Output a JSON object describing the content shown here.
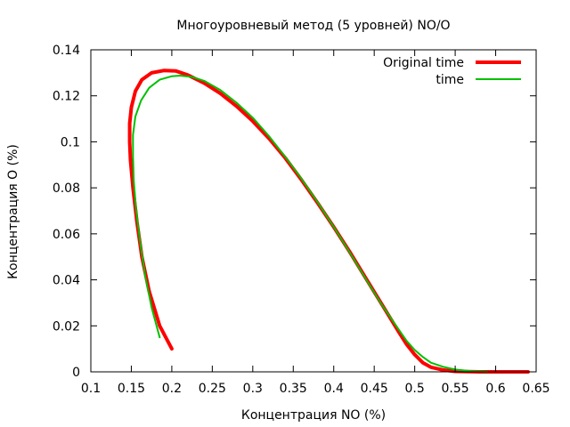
{
  "chart_data": {
    "type": "line",
    "title": "Многоуровневый метод (5 уровней) NO/O",
    "xlabel": "Концентрация NO (%)",
    "ylabel": "Концентрация O (%)",
    "xlim": [
      0.1,
      0.65
    ],
    "ylim": [
      0,
      0.14
    ],
    "x_ticks": [
      {
        "value": 0.1,
        "label": "0.1"
      },
      {
        "value": 0.15,
        "label": "0.15"
      },
      {
        "value": 0.2,
        "label": "0.2"
      },
      {
        "value": 0.25,
        "label": "0.25"
      },
      {
        "value": 0.3,
        "label": "0.3"
      },
      {
        "value": 0.35,
        "label": "0.35"
      },
      {
        "value": 0.4,
        "label": "0.4"
      },
      {
        "value": 0.45,
        "label": "0.45"
      },
      {
        "value": 0.5,
        "label": "0.5"
      },
      {
        "value": 0.55,
        "label": "0.55"
      },
      {
        "value": 0.6,
        "label": "0.6"
      },
      {
        "value": 0.65,
        "label": "0.65"
      }
    ],
    "y_ticks": [
      {
        "value": 0,
        "label": "0"
      },
      {
        "value": 0.02,
        "label": "0.02"
      },
      {
        "value": 0.04,
        "label": "0.04"
      },
      {
        "value": 0.06,
        "label": "0.06"
      },
      {
        "value": 0.08,
        "label": "0.08"
      },
      {
        "value": 0.1,
        "label": "0.1"
      },
      {
        "value": 0.12,
        "label": "0.12"
      },
      {
        "value": 0.14,
        "label": "0.14"
      }
    ],
    "grid": false,
    "legend_position": "top-right",
    "series": [
      {
        "name": "Original time",
        "color": "#ff0000",
        "line_weight": "thick",
        "x": [
          0.2,
          0.185,
          0.172,
          0.163,
          0.157,
          0.152,
          0.149,
          0.148,
          0.148,
          0.15,
          0.155,
          0.163,
          0.175,
          0.19,
          0.205,
          0.22,
          0.24,
          0.26,
          0.28,
          0.3,
          0.32,
          0.34,
          0.36,
          0.38,
          0.4,
          0.42,
          0.44,
          0.46,
          0.48,
          0.49,
          0.5,
          0.51,
          0.52,
          0.535,
          0.55,
          0.58,
          0.6,
          0.64
        ],
        "y": [
          0.01,
          0.02,
          0.035,
          0.05,
          0.065,
          0.08,
          0.092,
          0.1,
          0.108,
          0.115,
          0.122,
          0.127,
          0.13,
          0.131,
          0.1308,
          0.129,
          0.1255,
          0.121,
          0.1155,
          0.109,
          0.1015,
          0.093,
          0.0835,
          0.0735,
          0.063,
          0.052,
          0.0405,
          0.029,
          0.0175,
          0.012,
          0.0075,
          0.004,
          0.002,
          0.0008,
          0.0002,
          0,
          0,
          0
        ]
      },
      {
        "name": "time",
        "color": "#00c000",
        "line_weight": "thin",
        "x": [
          0.185,
          0.175,
          0.167,
          0.161,
          0.156,
          0.153,
          0.152,
          0.152,
          0.155,
          0.162,
          0.172,
          0.185,
          0.2,
          0.21,
          0.225,
          0.24,
          0.26,
          0.28,
          0.3,
          0.32,
          0.34,
          0.36,
          0.38,
          0.4,
          0.42,
          0.44,
          0.46,
          0.48,
          0.49,
          0.5,
          0.51,
          0.52,
          0.535,
          0.55,
          0.57,
          0.59
        ],
        "y": [
          0.015,
          0.028,
          0.042,
          0.056,
          0.07,
          0.083,
          0.094,
          0.103,
          0.111,
          0.118,
          0.1235,
          0.127,
          0.1285,
          0.1288,
          0.1282,
          0.1265,
          0.1225,
          0.117,
          0.1105,
          0.1025,
          0.0935,
          0.084,
          0.0738,
          0.063,
          0.0518,
          0.0402,
          0.0288,
          0.0185,
          0.0135,
          0.0095,
          0.0065,
          0.004,
          0.0022,
          0.001,
          0.0003,
          0
        ]
      }
    ]
  }
}
